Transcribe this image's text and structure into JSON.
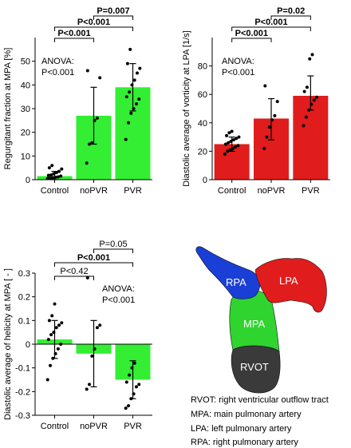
{
  "charts": [
    {
      "type": "bar",
      "ylabel": "Regurgitant fraction at MPA [%]",
      "ylim": [
        0,
        60
      ],
      "yticks": [
        0,
        10,
        20,
        30,
        40,
        50
      ],
      "ytick_labels": [
        "0",
        "10",
        "20",
        "30",
        "40",
        "50"
      ],
      "categories": [
        "Control",
        "noPVR",
        "PVR"
      ],
      "values": [
        1.5,
        27,
        39
      ],
      "error": [
        [
          0,
          3.5
        ],
        [
          15,
          39
        ],
        [
          29,
          49
        ]
      ],
      "bar_color": "#33ee33",
      "points": [
        [
          0.5,
          0.6,
          0.8,
          1.0,
          1.2,
          1.5,
          1.8,
          2.0,
          2.5,
          3.0,
          3.5,
          4.5,
          5.0,
          6.0
        ],
        [
          7,
          15,
          15.5,
          25,
          26,
          43,
          46
        ],
        [
          17,
          24,
          28,
          30,
          32,
          34,
          35,
          37,
          40,
          42,
          45,
          47,
          49,
          55
        ]
      ],
      "anova": [
        "ANOVA:",
        "P<0.001"
      ],
      "brackets": [
        {
          "from": 0,
          "to": 1,
          "label": "P<0.001",
          "bold": true,
          "level": 0
        },
        {
          "from": 0,
          "to": 2,
          "label": "P<0.001",
          "bold": true,
          "level": 1
        },
        {
          "from": 1,
          "to": 2,
          "label": "P=0.007",
          "bold": true,
          "level": 2
        }
      ]
    },
    {
      "type": "bar",
      "ylabel": "Diastolic average of vorticity at LPA [1/s]",
      "ylim": [
        0,
        100
      ],
      "yticks": [
        0,
        20,
        40,
        60,
        80
      ],
      "ytick_labels": [
        "0",
        "20",
        "40",
        "60",
        "80"
      ],
      "categories": [
        "Control",
        "noPVR",
        "PVR"
      ],
      "values": [
        25,
        43,
        59
      ],
      "error": [
        [
          20,
          30
        ],
        [
          28,
          57
        ],
        [
          49,
          73
        ]
      ],
      "bar_color": "#e01c1c",
      "points": [
        [
          18,
          20,
          21,
          22,
          23,
          24,
          25,
          26,
          27,
          28,
          29,
          30,
          31,
          33,
          34
        ],
        [
          22,
          30,
          37,
          42,
          45,
          55,
          66
        ],
        [
          38,
          44,
          49,
          53,
          56,
          58,
          62,
          65,
          85,
          88
        ]
      ],
      "anova": [
        "ANOVA:",
        "P<0.001"
      ],
      "brackets": [
        {
          "from": 0,
          "to": 1,
          "label": "P<0.001",
          "bold": true,
          "level": 0
        },
        {
          "from": 0,
          "to": 2,
          "label": "P<0.001",
          "bold": true,
          "level": 1
        },
        {
          "from": 1,
          "to": 2,
          "label": "P=0.02",
          "bold": true,
          "level": 2
        }
      ]
    },
    {
      "type": "bar",
      "ylabel": "Diastolic average of helicity at MPA [ - ]",
      "ylim": [
        -0.3,
        0.3
      ],
      "yticks": [
        -0.3,
        -0.2,
        -0.1,
        0,
        0.1,
        0.2,
        0.3
      ],
      "ytick_labels": [
        "-0.3",
        "-0.2",
        "-0.1",
        "0",
        "0.1",
        "0.2",
        "0.3"
      ],
      "categories": [
        "Control",
        "noPVR",
        "PVR"
      ],
      "values": [
        0.02,
        -0.04,
        -0.15
      ],
      "error": [
        [
          -0.06,
          0.1
        ],
        [
          -0.18,
          0.1
        ],
        [
          -0.23,
          -0.07
        ]
      ],
      "bar_color": "#33ee33",
      "points": [
        [
          -0.15,
          -0.09,
          -0.06,
          -0.04,
          -0.02,
          0.0,
          0.02,
          0.04,
          0.05,
          0.07,
          0.08,
          0.09,
          0.1,
          0.12,
          0.17
        ],
        [
          -0.19,
          -0.17,
          -0.05,
          -0.02,
          0.07,
          0.08,
          0.28
        ],
        [
          -0.27,
          -0.26,
          -0.23,
          -0.21,
          -0.18,
          -0.17,
          -0.16,
          -0.13,
          -0.1,
          -0.08
        ]
      ],
      "anova": [
        "ANOVA:",
        "P<0.001"
      ],
      "brackets": [
        {
          "from": 0,
          "to": 1,
          "label": "P<0.42",
          "bold": false,
          "level": 0
        },
        {
          "from": 0,
          "to": 2,
          "label": "P<0.001",
          "bold": true,
          "level": 1
        },
        {
          "from": 1,
          "to": 2,
          "label": "P=0.05",
          "bold": false,
          "level": 2
        }
      ]
    }
  ],
  "anatomy": {
    "regions": [
      {
        "label": "RPA",
        "color": "#1a3fd6"
      },
      {
        "label": "LPA",
        "color": "#e01c1c"
      },
      {
        "label": "MPA",
        "color": "#2fd42f"
      },
      {
        "label": "RVOT",
        "color": "#3a3a3a"
      }
    ],
    "legend": [
      "RVOT: right ventricular outflow tract",
      "MPA: main pulmonary artery",
      "LPA: left pulmonary artery",
      "RPA: right pulmonary artery"
    ]
  }
}
